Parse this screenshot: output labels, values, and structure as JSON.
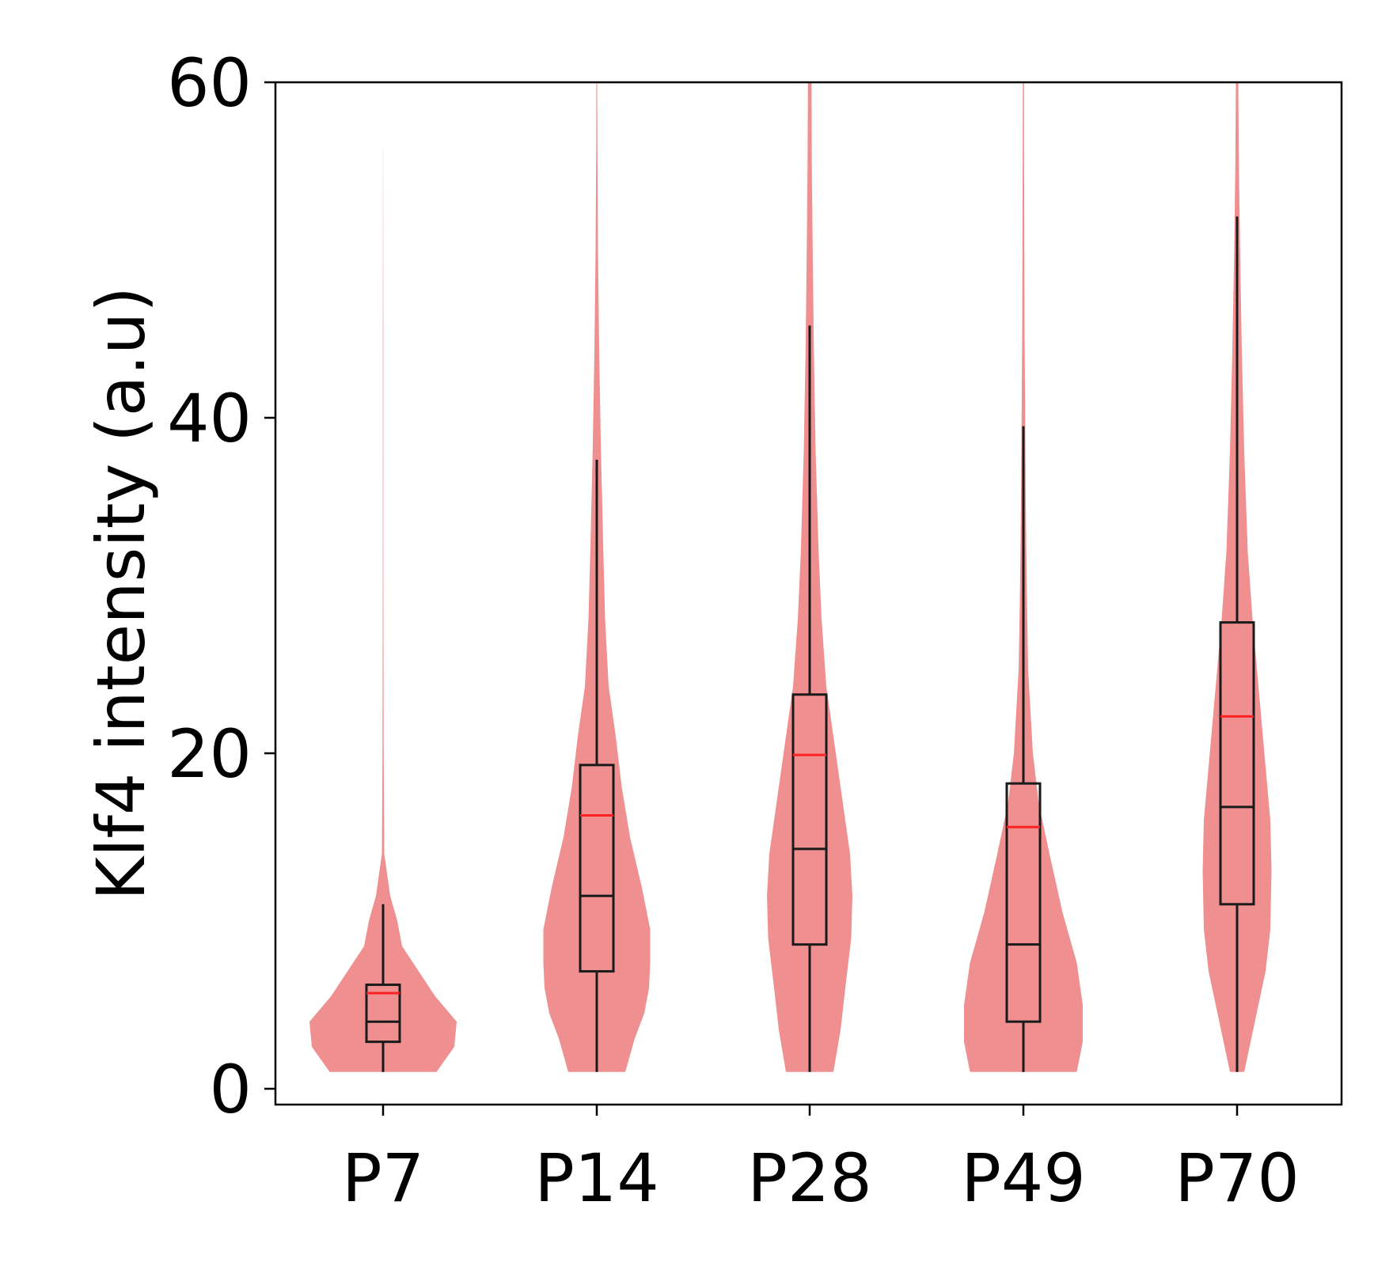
{
  "chart_data": {
    "type": "violin",
    "categories": [
      "P7",
      "P14",
      "P28",
      "P49",
      "P70"
    ],
    "ylabel": "Klf4  intensity (a.u)",
    "xlabel": "",
    "ylim": [
      0,
      60
    ],
    "yticks": [
      0,
      20,
      40,
      60
    ],
    "grid": false,
    "colors": {
      "violin": "#f08f8f",
      "box": "#1a1a1a",
      "mean_line": "#ff2222",
      "axis": "#000000"
    },
    "series": [
      {
        "category": "P7",
        "whisker_low": 1,
        "q1": 2.8,
        "median": 4.0,
        "q3": 6.2,
        "whisker_high": 11,
        "mean": 5.7,
        "density": [
          [
            1,
            0.45
          ],
          [
            2.5,
            0.6
          ],
          [
            4,
            0.62
          ],
          [
            5.5,
            0.44
          ],
          [
            7,
            0.3
          ],
          [
            8.5,
            0.16
          ],
          [
            10,
            0.12
          ],
          [
            11.5,
            0.06
          ],
          [
            14,
            0.01
          ],
          [
            20,
            0.005
          ],
          [
            30,
            0.003
          ],
          [
            45,
            0.002
          ],
          [
            56,
            0.001
          ]
        ]
      },
      {
        "category": "P14",
        "whisker_low": 1,
        "q1": 7,
        "median": 11.5,
        "q3": 19.3,
        "whisker_high": 37.5,
        "mean": 16.3,
        "density": [
          [
            1,
            0.24
          ],
          [
            3,
            0.32
          ],
          [
            4.5,
            0.4
          ],
          [
            6,
            0.44
          ],
          [
            7.5,
            0.45
          ],
          [
            9.5,
            0.45
          ],
          [
            12,
            0.38
          ],
          [
            15,
            0.28
          ],
          [
            18,
            0.21
          ],
          [
            21,
            0.16
          ],
          [
            24,
            0.1
          ],
          [
            28,
            0.07
          ],
          [
            32,
            0.055
          ],
          [
            38,
            0.035
          ],
          [
            44,
            0.02
          ],
          [
            50,
            0.01
          ],
          [
            56,
            0.005
          ],
          [
            60,
            0.003
          ]
        ]
      },
      {
        "category": "P28",
        "whisker_low": 1,
        "q1": 8.6,
        "median": 14.3,
        "q3": 23.5,
        "whisker_high": 45.5,
        "mean": 19.9,
        "density": [
          [
            1,
            0.2
          ],
          [
            3.5,
            0.26
          ],
          [
            6,
            0.3
          ],
          [
            9,
            0.35
          ],
          [
            11.5,
            0.36
          ],
          [
            14,
            0.34
          ],
          [
            17,
            0.28
          ],
          [
            20,
            0.22
          ],
          [
            24,
            0.14
          ],
          [
            28,
            0.1
          ],
          [
            32,
            0.075
          ],
          [
            38,
            0.05
          ],
          [
            44,
            0.035
          ],
          [
            50,
            0.025
          ],
          [
            55,
            0.018
          ],
          [
            60,
            0.015
          ]
        ]
      },
      {
        "category": "P49",
        "whisker_low": 1,
        "q1": 4,
        "median": 8.6,
        "q3": 18.2,
        "whisker_high": 39.5,
        "mean": 15.6,
        "density": [
          [
            1,
            0.45
          ],
          [
            2.8,
            0.5
          ],
          [
            5,
            0.5
          ],
          [
            7.5,
            0.45
          ],
          [
            10.5,
            0.33
          ],
          [
            14,
            0.22
          ],
          [
            17,
            0.13
          ],
          [
            20,
            0.08
          ],
          [
            25,
            0.04
          ],
          [
            30,
            0.028
          ],
          [
            35,
            0.02
          ],
          [
            40,
            0.015
          ],
          [
            45,
            0.01
          ],
          [
            50,
            0.008
          ],
          [
            55,
            0.006
          ],
          [
            60,
            0.005
          ]
        ]
      },
      {
        "category": "P70",
        "whisker_low": 1,
        "q1": 11,
        "median": 16.8,
        "q3": 27.8,
        "whisker_high": 52,
        "mean": 22.2,
        "density": [
          [
            1,
            0.06
          ],
          [
            4,
            0.15
          ],
          [
            7,
            0.24
          ],
          [
            9.5,
            0.28
          ],
          [
            13,
            0.29
          ],
          [
            16,
            0.28
          ],
          [
            20,
            0.23
          ],
          [
            24,
            0.18
          ],
          [
            28,
            0.13
          ],
          [
            32,
            0.09
          ],
          [
            38,
            0.06
          ],
          [
            44,
            0.04
          ],
          [
            50,
            0.025
          ],
          [
            55,
            0.015
          ],
          [
            60,
            0.01
          ]
        ]
      }
    ]
  }
}
